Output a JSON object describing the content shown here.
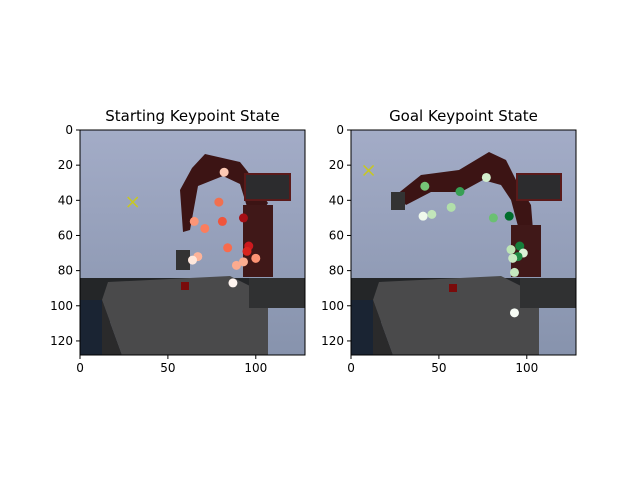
{
  "figure": {
    "panels": [
      {
        "title": "Starting Keypoint State",
        "xticks": [
          "0",
          "50",
          "100"
        ],
        "yticks": [
          "0",
          "20",
          "40",
          "60",
          "80",
          "100",
          "120"
        ],
        "xlim": [
          0,
          128
        ],
        "ylim": [
          128,
          0
        ],
        "cross": {
          "x": 30,
          "y": 41,
          "color": "#c8c820"
        },
        "keypoints": [
          {
            "x": 82,
            "y": 24,
            "color": "#fdc9b4"
          },
          {
            "x": 79,
            "y": 41,
            "color": "#f1704f"
          },
          {
            "x": 65,
            "y": 52,
            "color": "#fc9576"
          },
          {
            "x": 81,
            "y": 52,
            "color": "#f0553c"
          },
          {
            "x": 71,
            "y": 56,
            "color": "#fb7d5d"
          },
          {
            "x": 93,
            "y": 50,
            "color": "#a50f15"
          },
          {
            "x": 84,
            "y": 67,
            "color": "#f96b4c"
          },
          {
            "x": 96,
            "y": 66,
            "color": "#cc191e"
          },
          {
            "x": 95,
            "y": 69,
            "color": "#d8251f"
          },
          {
            "x": 67,
            "y": 72,
            "color": "#fdb399"
          },
          {
            "x": 64,
            "y": 74,
            "color": "#fee7dc"
          },
          {
            "x": 100,
            "y": 73,
            "color": "#fc9374"
          },
          {
            "x": 93,
            "y": 75,
            "color": "#fcad91"
          },
          {
            "x": 89,
            "y": 77,
            "color": "#fcab8f"
          },
          {
            "x": 87,
            "y": 87,
            "color": "#fff5f0"
          }
        ]
      },
      {
        "title": "Goal Keypoint State",
        "xticks": [
          "0",
          "50",
          "100"
        ],
        "yticks": [
          "0",
          "20",
          "40",
          "60",
          "80",
          "100",
          "120"
        ],
        "xlim": [
          0,
          128
        ],
        "ylim": [
          128,
          0
        ],
        "cross": {
          "x": 10,
          "y": 23,
          "color": "#c8c820"
        },
        "keypoints": [
          {
            "x": 42,
            "y": 32,
            "color": "#75c477"
          },
          {
            "x": 62,
            "y": 35,
            "color": "#38a055"
          },
          {
            "x": 77,
            "y": 27,
            "color": "#d3eecd"
          },
          {
            "x": 57,
            "y": 44,
            "color": "#b1dfaa"
          },
          {
            "x": 41,
            "y": 49,
            "color": "#eff9ec"
          },
          {
            "x": 46,
            "y": 48,
            "color": "#c2e6ba"
          },
          {
            "x": 81,
            "y": 50,
            "color": "#6bc072"
          },
          {
            "x": 90,
            "y": 49,
            "color": "#006d2c"
          },
          {
            "x": 96,
            "y": 66,
            "color": "#157f3b"
          },
          {
            "x": 91,
            "y": 68,
            "color": "#bde5b5"
          },
          {
            "x": 98,
            "y": 70,
            "color": "#dcf2d6"
          },
          {
            "x": 95,
            "y": 72,
            "color": "#238b45"
          },
          {
            "x": 92,
            "y": 73,
            "color": "#c9eac2"
          },
          {
            "x": 93,
            "y": 81,
            "color": "#c5e8be"
          },
          {
            "x": 93,
            "y": 104,
            "color": "#f7fcf5"
          }
        ]
      }
    ]
  }
}
